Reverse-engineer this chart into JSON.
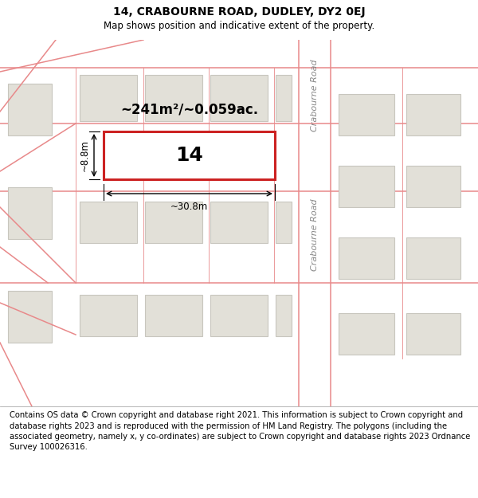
{
  "title": "14, CRABOURNE ROAD, DUDLEY, DY2 0EJ",
  "subtitle": "Map shows position and indicative extent of the property.",
  "copyright": "Contains OS data © Crown copyright and database right 2021. This information is subject to Crown copyright and database rights 2023 and is reproduced with the permission of HM Land Registry. The polygons (including the associated geometry, namely x, y co-ordinates) are subject to Crown copyright and database rights 2023 Ordnance Survey 100026316.",
  "area_label": "~241m²/~0.059ac.",
  "width_label": "~8.8m",
  "length_label": "~30.8m",
  "house_number": "14",
  "road_label": "Crabourne Road",
  "map_bg": "#f7f6f1",
  "building_color": "#e2e0d8",
  "building_edge": "#c8c6be",
  "road_color": "#e8898a",
  "highlight_color": "#cc2222",
  "highlight_fill": "#ffffff",
  "text_color": "#000000",
  "road_text_color": "#888888",
  "title_fontsize": 10,
  "subtitle_fontsize": 8.5,
  "copyright_fontsize": 7.2
}
